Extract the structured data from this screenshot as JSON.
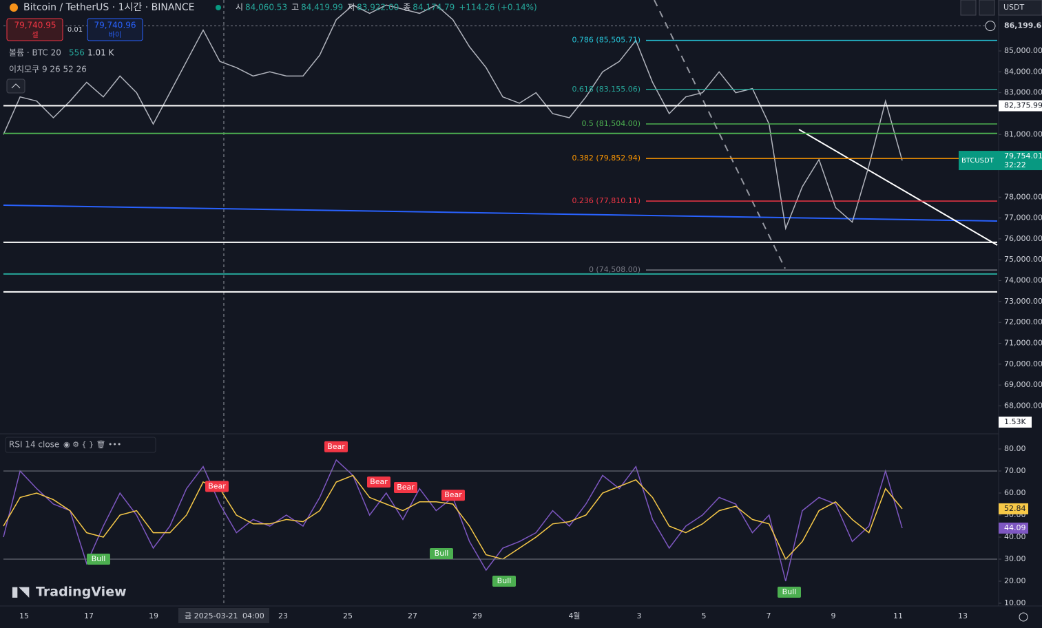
{
  "header": {
    "symbol": "Bitcoin / TetherUS · 1시간 · BINANCE",
    "ohlc": [
      {
        "key": "시",
        "value": "84,060.53"
      },
      {
        "key": "고",
        "value": "84,419.99"
      },
      {
        "key": "저",
        "value": "83,922.00"
      },
      {
        "key": "종",
        "value": "84,174.79"
      }
    ],
    "change": "+114.26 (+0.14%)",
    "sell_price": "79,740.95",
    "sell_label": "셀",
    "spread": "0.01",
    "buy_price": "79,740.96",
    "buy_label": "바이",
    "currency": "USDT"
  },
  "indicators": {
    "volume_name": "볼륨 · BTC 20",
    "volume_v1": "556",
    "volume_v2": "1.01 K",
    "ichimoku": "이치모쿠 9 26 52 26",
    "rsi": "RSI 14 close"
  },
  "chart_data": [
    {
      "type": "line",
      "series": [
        {
          "color": "#b2b5be",
          "values": [
            81000,
            82800,
            82600,
            81800,
            82600,
            83500,
            82800,
            83800,
            83000,
            81500,
            83000,
            84500,
            86000,
            84500,
            84200,
            83800,
            84000,
            83800,
            83800,
            84800,
            86500,
            87200,
            86800,
            87200,
            87000,
            86800,
            87200,
            86500,
            85200,
            84200,
            82800,
            82500,
            83000,
            82000,
            81800,
            82800,
            84000,
            84500,
            85500,
            83500,
            82000,
            82800,
            83000,
            84000,
            83000,
            83200,
            81500,
            76500,
            78500,
            79800,
            77500,
            76800,
            79500,
            82600,
            79754.01
          ]
        }
      ],
      "ylim": [
        66730,
        87440
      ],
      "yticks": [
        {
          "value": 85000,
          "label": "85,000.00"
        },
        {
          "value": 84000,
          "label": "84,000.00"
        },
        {
          "value": 83000,
          "label": "83,000.00"
        },
        {
          "value": 81000,
          "label": "81,000.00"
        },
        {
          "value": 78000,
          "label": "78,000.00"
        },
        {
          "value": 77000,
          "label": "77,000.00"
        },
        {
          "value": 76000,
          "label": "76,000.00"
        },
        {
          "value": 75000,
          "label": "75,000.00"
        },
        {
          "value": 74000,
          "label": "74,000.00"
        },
        {
          "value": 73000,
          "label": "73,000.00"
        },
        {
          "value": 72000,
          "label": "72,000.00"
        },
        {
          "value": 71000,
          "label": "71,000.00"
        },
        {
          "value": 70000,
          "label": "70,000.00"
        },
        {
          "value": 69000,
          "label": "69,000.00"
        },
        {
          "value": 68000,
          "label": "68,000.00"
        }
      ],
      "fib_levels": [
        {
          "value": 85505.71,
          "label": "0.786 (85,505.71)",
          "color": "#26c6da"
        },
        {
          "value": 83155.06,
          "label": "0.618 (83,155.06)",
          "color": "#26a69a"
        },
        {
          "value": 81504,
          "label": "0.5 (81,504.00)",
          "color": "#4caf50"
        },
        {
          "value": 79852.94,
          "label": "0.382 (79,852.94)",
          "color": "#ff9800"
        },
        {
          "value": 77810.11,
          "label": "0.236 (77,810.11)",
          "color": "#f23645"
        },
        {
          "value": 74508,
          "label": "0 (74,508.00)",
          "color": "#787b86"
        }
      ],
      "horizontal_lines": [
        {
          "value": 82375.99,
          "label": "82,375.99",
          "color": "#ffffff"
        },
        {
          "value": 81050,
          "color": "#4caf50"
        },
        {
          "value": 75834,
          "color": "#ffffff"
        },
        {
          "value": 74318,
          "color": "#26a69a"
        },
        {
          "value": 73460,
          "color": "#ffffff"
        }
      ],
      "high_marker": {
        "value": 86199.67,
        "label": "86,199.67"
      },
      "last_price": {
        "value": 79754.01,
        "label": "79,754.01",
        "symbol": "BTCUSDT",
        "countdown": "32:22"
      },
      "volume_label": "1.53K",
      "x_labels": [
        "15",
        "17",
        "19",
        "23",
        "25",
        "27",
        "29",
        "4월",
        "3",
        "5",
        "7",
        "9",
        "11",
        "13"
      ]
    },
    {
      "type": "line",
      "series": [
        {
          "color": "#7e57c2",
          "values": [
            40,
            70,
            62,
            55,
            52,
            28,
            45,
            60,
            50,
            35,
            45,
            62,
            72,
            55,
            42,
            48,
            45,
            50,
            45,
            58,
            75,
            68,
            50,
            60,
            48,
            62,
            52,
            58,
            38,
            25,
            35,
            38,
            42,
            52,
            45,
            55,
            68,
            62,
            72,
            48,
            35,
            45,
            50,
            58,
            55,
            42,
            50,
            20,
            52,
            58,
            55,
            38,
            45,
            70,
            44.09
          ]
        },
        {
          "color": "#f7c948",
          "values": [
            45,
            58,
            60,
            57,
            52,
            42,
            40,
            50,
            52,
            42,
            42,
            50,
            65,
            62,
            50,
            46,
            46,
            48,
            47,
            52,
            65,
            68,
            58,
            55,
            52,
            56,
            56,
            55,
            45,
            32,
            30,
            35,
            40,
            46,
            47,
            50,
            60,
            63,
            66,
            58,
            45,
            42,
            46,
            52,
            54,
            48,
            46,
            30,
            38,
            52,
            56,
            48,
            42,
            62,
            52.84
          ]
        }
      ],
      "ylim": [
        8.75,
        86.25
      ],
      "yticks": [
        {
          "value": 80,
          "label": "80.00"
        },
        {
          "value": 70,
          "label": "70.00"
        },
        {
          "value": 60,
          "label": "60.00"
        },
        {
          "value": 50,
          "label": "50.00"
        },
        {
          "value": 40,
          "label": "40.00"
        },
        {
          "value": 30,
          "label": "30.00"
        },
        {
          "value": 20,
          "label": "20.00"
        },
        {
          "value": 10,
          "label": "10.00"
        }
      ],
      "levels": [
        70,
        30
      ],
      "current_labels": [
        {
          "value": 52.84,
          "label": "52.84",
          "color": "#f7c948"
        },
        {
          "value": 44.09,
          "label": "44.09",
          "color": "#7e57c2"
        }
      ],
      "signals": [
        {
          "label": "Bear",
          "value": 81
        },
        {
          "label": "Bear",
          "value": 63
        },
        {
          "label": "Bear",
          "value": 65
        },
        {
          "label": "Bear",
          "value": 62.5
        },
        {
          "label": "Bear",
          "value": 59
        },
        {
          "label": "Bull",
          "value": 30
        },
        {
          "label": "Bull",
          "value": 32.5
        },
        {
          "label": "Bull",
          "value": 20
        },
        {
          "label": "Bull",
          "value": 15
        }
      ]
    }
  ],
  "crosshair": {
    "date": "금 2025-03-21",
    "time": "04:00"
  },
  "brand": "TradingView"
}
